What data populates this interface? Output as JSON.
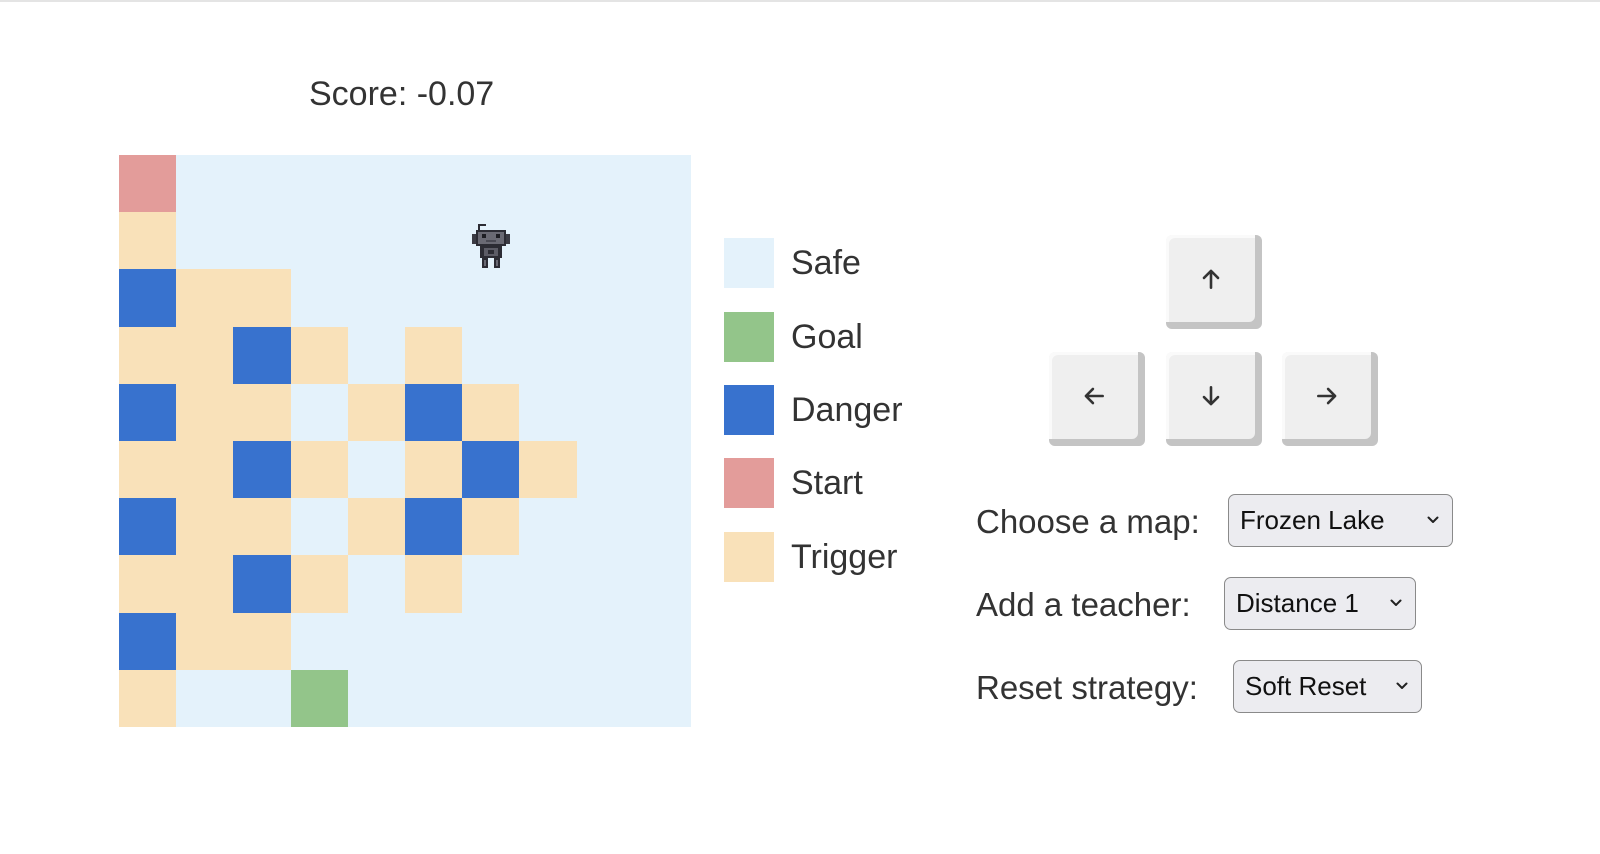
{
  "score": {
    "text": "Score: -0.07"
  },
  "colors": {
    "safe": "#e4f2fb",
    "goal": "#93c58a",
    "danger": "#3872ce",
    "start": "#e39c9a",
    "trigger": "#f9e1b9"
  },
  "grid": {
    "rows": [
      [
        "start",
        "safe",
        "safe",
        "safe",
        "safe",
        "safe",
        "safe",
        "safe",
        "safe",
        "safe"
      ],
      [
        "trigger",
        "safe",
        "safe",
        "safe",
        "safe",
        "safe",
        "safe",
        "safe",
        "safe",
        "safe"
      ],
      [
        "danger",
        "trigger",
        "trigger",
        "safe",
        "safe",
        "safe",
        "safe",
        "safe",
        "safe",
        "safe"
      ],
      [
        "trigger",
        "trigger",
        "danger",
        "trigger",
        "safe",
        "trigger",
        "safe",
        "safe",
        "safe",
        "safe"
      ],
      [
        "danger",
        "trigger",
        "trigger",
        "safe",
        "trigger",
        "danger",
        "trigger",
        "safe",
        "safe",
        "safe"
      ],
      [
        "trigger",
        "trigger",
        "danger",
        "trigger",
        "safe",
        "trigger",
        "danger",
        "trigger",
        "safe",
        "safe"
      ],
      [
        "danger",
        "trigger",
        "trigger",
        "safe",
        "trigger",
        "danger",
        "trigger",
        "safe",
        "safe",
        "safe"
      ],
      [
        "trigger",
        "trigger",
        "danger",
        "trigger",
        "safe",
        "trigger",
        "safe",
        "safe",
        "safe",
        "safe"
      ],
      [
        "danger",
        "trigger",
        "trigger",
        "safe",
        "safe",
        "safe",
        "safe",
        "safe",
        "safe",
        "safe"
      ],
      [
        "trigger",
        "safe",
        "safe",
        "goal",
        "safe",
        "safe",
        "safe",
        "safe",
        "safe",
        "safe"
      ]
    ],
    "agent": {
      "row": 1,
      "col": 6,
      "icon": "robot-icon"
    }
  },
  "legend": [
    {
      "key": "safe",
      "label": "Safe"
    },
    {
      "key": "goal",
      "label": "Goal"
    },
    {
      "key": "danger",
      "label": "Danger"
    },
    {
      "key": "start",
      "label": "Start"
    },
    {
      "key": "trigger",
      "label": "Trigger"
    }
  ],
  "controls": {
    "up": {
      "icon": "arrow-up-icon"
    },
    "left": {
      "icon": "arrow-left-icon"
    },
    "down": {
      "icon": "arrow-down-icon"
    },
    "right": {
      "icon": "arrow-right-icon"
    }
  },
  "settings": {
    "map": {
      "label": "Choose a map:",
      "value": "Frozen Lake"
    },
    "teacher": {
      "label": "Add a teacher:",
      "value": "Distance 1"
    },
    "reset": {
      "label": "Reset strategy:",
      "value": "Soft Reset"
    }
  }
}
